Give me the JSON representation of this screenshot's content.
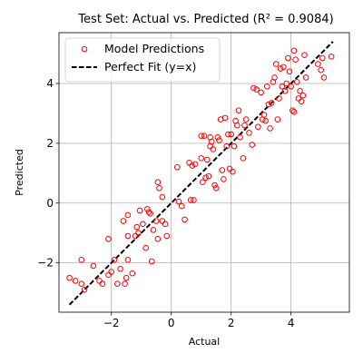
{
  "chart_data": {
    "type": "scatter",
    "title": "Test Set: Actual vs. Predicted (R² = 0.9084)",
    "xlabel": "Actual",
    "ylabel": "Predicted",
    "xlim": [
      -3.75,
      5.95
    ],
    "ylim": [
      -3.65,
      5.7
    ],
    "x_ticks": [
      -2,
      0,
      2,
      4
    ],
    "y_ticks": [
      -2,
      0,
      2,
      4
    ],
    "x_tick_labels": [
      "−2",
      "0",
      "2",
      "4"
    ],
    "y_tick_labels": [
      "−2",
      "0",
      "2",
      "4"
    ],
    "grid": true,
    "legend_position": "upper-left",
    "colors": {
      "points": "#ff0000",
      "fit_line": "#000000"
    },
    "series": [
      {
        "name": "Model Predictions",
        "kind": "scatter",
        "marker": "hollow-circle",
        "points": [
          [
            -3.4,
            -2.5
          ],
          [
            -3.2,
            -2.6
          ],
          [
            -3.0,
            -2.7
          ],
          [
            -3.0,
            -1.9
          ],
          [
            -2.9,
            -2.9
          ],
          [
            -2.6,
            -2.1
          ],
          [
            -2.4,
            -2.6
          ],
          [
            -2.3,
            -2.7
          ],
          [
            -2.1,
            -1.2
          ],
          [
            -2.1,
            -2.4
          ],
          [
            -2.0,
            -2.3
          ],
          [
            -1.9,
            -1.9
          ],
          [
            -1.8,
            -2.7
          ],
          [
            -1.7,
            -2.2
          ],
          [
            -1.6,
            -0.6
          ],
          [
            -1.55,
            -2.7
          ],
          [
            -1.5,
            -2.5
          ],
          [
            -1.45,
            -1.9
          ],
          [
            -1.45,
            -1.1
          ],
          [
            -1.45,
            -0.4
          ],
          [
            -1.3,
            -2.35
          ],
          [
            -1.2,
            -1.1
          ],
          [
            -1.15,
            -0.8
          ],
          [
            -1.1,
            -1.0
          ],
          [
            -1.05,
            -0.25
          ],
          [
            -0.95,
            -0.7
          ],
          [
            -0.85,
            -1.5
          ],
          [
            -0.8,
            -0.2
          ],
          [
            -0.75,
            -0.3
          ],
          [
            -0.7,
            -0.35
          ],
          [
            -0.65,
            -1.95
          ],
          [
            -0.6,
            -0.9
          ],
          [
            -0.5,
            -0.6
          ],
          [
            -0.45,
            -1.2
          ],
          [
            -0.45,
            0.7
          ],
          [
            -0.4,
            0.5
          ],
          [
            -0.3,
            0.2
          ],
          [
            -0.3,
            -0.6
          ],
          [
            -0.2,
            -0.7
          ],
          [
            -0.15,
            -1.1
          ],
          [
            0.2,
            1.2
          ],
          [
            0.25,
            0.05
          ],
          [
            0.35,
            -0.1
          ],
          [
            0.45,
            -0.55
          ],
          [
            0.6,
            1.35
          ],
          [
            0.65,
            0.1
          ],
          [
            0.7,
            1.25
          ],
          [
            0.75,
            0.1
          ],
          [
            0.8,
            1.3
          ],
          [
            1.0,
            2.25
          ],
          [
            1.0,
            1.5
          ],
          [
            1.05,
            0.7
          ],
          [
            1.1,
            2.25
          ],
          [
            1.15,
            0.85
          ],
          [
            1.2,
            1.45
          ],
          [
            1.25,
            0.9
          ],
          [
            1.3,
            2.2
          ],
          [
            1.3,
            1.9
          ],
          [
            1.35,
            2.05
          ],
          [
            1.4,
            1.8
          ],
          [
            1.45,
            0.6
          ],
          [
            1.5,
            0.5
          ],
          [
            1.55,
            2.2
          ],
          [
            1.6,
            2.1
          ],
          [
            1.65,
            2.8
          ],
          [
            1.7,
            1.1
          ],
          [
            1.75,
            0.8
          ],
          [
            1.8,
            2.85
          ],
          [
            1.85,
            1.9
          ],
          [
            1.9,
            2.3
          ],
          [
            1.95,
            1.15
          ],
          [
            2.0,
            2.3
          ],
          [
            2.05,
            1.05
          ],
          [
            2.1,
            1.9
          ],
          [
            2.15,
            2.75
          ],
          [
            2.2,
            2.6
          ],
          [
            2.25,
            3.1
          ],
          [
            2.3,
            2.2
          ],
          [
            2.4,
            1.5
          ],
          [
            2.45,
            2.6
          ],
          [
            2.5,
            2.8
          ],
          [
            2.6,
            2.35
          ],
          [
            2.7,
            1.95
          ],
          [
            2.75,
            3.85
          ],
          [
            2.85,
            3.8
          ],
          [
            2.9,
            2.55
          ],
          [
            3.0,
            3.7
          ],
          [
            3.05,
            2.8
          ],
          [
            3.1,
            2.95
          ],
          [
            3.15,
            2.75
          ],
          [
            3.2,
            3.9
          ],
          [
            3.25,
            3.3
          ],
          [
            3.3,
            2.5
          ],
          [
            3.35,
            3.35
          ],
          [
            3.4,
            4.05
          ],
          [
            3.45,
            4.2
          ],
          [
            3.5,
            4.65
          ],
          [
            3.55,
            2.8
          ],
          [
            3.6,
            3.5
          ],
          [
            3.65,
            4.5
          ],
          [
            3.7,
            3.9
          ],
          [
            3.75,
            4.55
          ],
          [
            3.8,
            3.75
          ],
          [
            3.85,
            4.0
          ],
          [
            3.9,
            4.85
          ],
          [
            3.95,
            4.4
          ],
          [
            4.0,
            3.9
          ],
          [
            4.05,
            3.1
          ],
          [
            4.1,
            3.05
          ],
          [
            4.15,
            4.8
          ],
          [
            4.1,
            5.1
          ],
          [
            4.2,
            4.05
          ],
          [
            4.25,
            3.5
          ],
          [
            4.3,
            3.75
          ],
          [
            4.35,
            3.4
          ],
          [
            4.4,
            3.6
          ],
          [
            4.45,
            4.95
          ],
          [
            4.5,
            4.2
          ],
          [
            4.9,
            4.65
          ],
          [
            5.0,
            4.45
          ],
          [
            5.05,
            4.85
          ],
          [
            5.1,
            4.2
          ],
          [
            5.35,
            4.9
          ]
        ]
      },
      {
        "name": "Perfect Fit (y=x)",
        "kind": "line",
        "dash": "dashed",
        "points": [
          [
            -3.4,
            -3.4
          ],
          [
            5.4,
            5.4
          ]
        ]
      }
    ]
  }
}
